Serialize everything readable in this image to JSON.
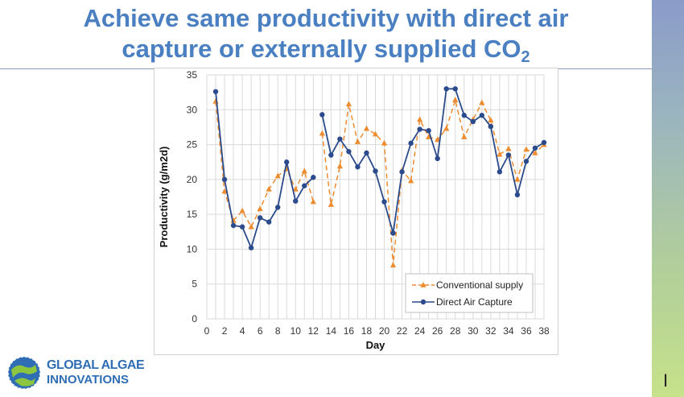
{
  "slide": {
    "title_line1": "Achieve same productivity with direct air",
    "title_line2": "capture or externally supplied CO",
    "title_sub": "2",
    "page_number": "I",
    "title_color": "#4a7fc1"
  },
  "logo": {
    "line1": "GLOBAL ALGAE",
    "line2": "INNOVATIONS",
    "icon": "globe-logo-icon"
  },
  "chart_data": {
    "type": "line",
    "title": "",
    "xlabel": "Day",
    "ylabel": "Productivity (g/m2d)",
    "xlim": [
      0,
      38
    ],
    "ylim": [
      0,
      35
    ],
    "xticks": [
      0,
      2,
      4,
      6,
      8,
      10,
      12,
      14,
      16,
      18,
      20,
      22,
      24,
      26,
      28,
      30,
      32,
      34,
      36,
      38
    ],
    "yticks": [
      0,
      5,
      10,
      15,
      20,
      25,
      30,
      35
    ],
    "grid": true,
    "legend_position": "bottom-right",
    "series": [
      {
        "name": "Conventional supply",
        "color": "#ed8b2f",
        "marker": "triangle",
        "dash": true,
        "segments": [
          [
            [
              1,
              31.2
            ],
            [
              2,
              18.3
            ],
            [
              3,
              14.1
            ],
            [
              4,
              15.5
            ],
            [
              5,
              13.2
            ],
            [
              6,
              15.8
            ],
            [
              7,
              18.6
            ],
            [
              8,
              20.5
            ],
            [
              9,
              21.5
            ],
            [
              10,
              18.6
            ],
            [
              11,
              21.2
            ],
            [
              12,
              16.8
            ]
          ],
          [
            [
              13,
              26.6
            ],
            [
              14,
              16.4
            ],
            [
              15,
              21.9
            ],
            [
              16,
              30.8
            ],
            [
              17,
              25.4
            ],
            [
              18,
              27.3
            ],
            [
              19,
              26.5
            ],
            [
              20,
              25.2
            ],
            [
              21,
              7.7
            ],
            [
              22,
              21.3
            ],
            [
              23,
              19.8
            ],
            [
              24,
              28.6
            ],
            [
              25,
              26.1
            ],
            [
              26,
              25.7
            ],
            [
              27,
              27.3
            ],
            [
              28,
              31.4
            ],
            [
              29,
              26.1
            ],
            [
              30,
              28.6
            ],
            [
              31,
              31.0
            ],
            [
              32,
              28.5
            ],
            [
              33,
              23.6
            ],
            [
              34,
              24.4
            ],
            [
              35,
              20.0
            ],
            [
              36,
              24.3
            ],
            [
              37,
              23.8
            ],
            [
              38,
              25.0
            ]
          ]
        ]
      },
      {
        "name": "Direct Air Capture",
        "color": "#2c4b8c",
        "marker": "circle",
        "dash": false,
        "segments": [
          [
            [
              1,
              32.6
            ],
            [
              2,
              20.0
            ],
            [
              3,
              13.4
            ],
            [
              4,
              13.2
            ],
            [
              5,
              10.2
            ],
            [
              6,
              14.5
            ],
            [
              7,
              13.9
            ],
            [
              8,
              16.0
            ],
            [
              9,
              22.5
            ],
            [
              10,
              16.9
            ],
            [
              11,
              19.1
            ],
            [
              12,
              20.3
            ]
          ],
          [
            [
              13,
              29.3
            ],
            [
              14,
              23.5
            ],
            [
              15,
              25.8
            ],
            [
              16,
              24.0
            ],
            [
              17,
              21.8
            ],
            [
              18,
              23.8
            ],
            [
              19,
              21.2
            ],
            [
              20,
              16.8
            ],
            [
              21,
              12.3
            ],
            [
              22,
              21.1
            ],
            [
              23,
              25.2
            ],
            [
              24,
              27.2
            ],
            [
              25,
              27.0
            ],
            [
              26,
              23.0
            ],
            [
              27,
              33.0
            ],
            [
              28,
              33.0
            ],
            [
              29,
              29.2
            ],
            [
              30,
              28.3
            ],
            [
              31,
              29.2
            ],
            [
              32,
              27.6
            ],
            [
              33,
              21.1
            ],
            [
              34,
              23.5
            ],
            [
              35,
              17.8
            ],
            [
              36,
              22.6
            ],
            [
              37,
              24.5
            ],
            [
              38,
              25.3
            ]
          ]
        ]
      }
    ]
  }
}
